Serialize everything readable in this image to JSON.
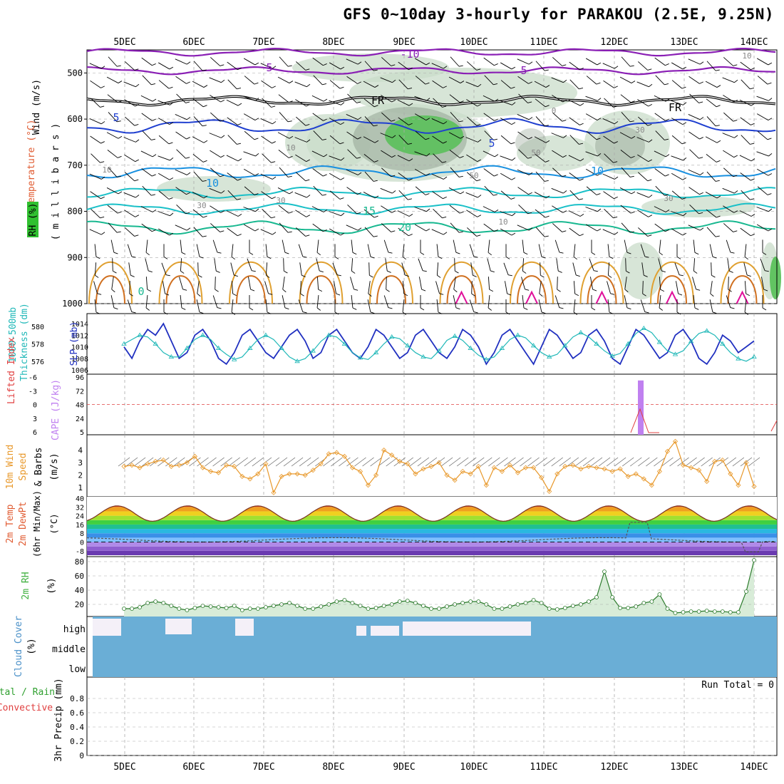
{
  "title": "GFS 0~10day 3-hourly for PARAKOU (2.5E, 9.25N)",
  "colors": {
    "grid": "#aaaaaa",
    "rh": "#c9dcc9",
    "rh_dark": "#9aaa9a",
    "rh_green": "#55c055",
    "temp_purple": "#8a1fb5",
    "temp_blue": "#1f3fd0",
    "temp_lightblue": "#1890e0",
    "temp_cyan": "#1ac0c8",
    "temp_teal": "#18b890",
    "freeze": "#000000",
    "warm_orange": "#e0a030",
    "warm_dark": "#d07020",
    "warm_magenta": "#e0109a",
    "thickness": "#20b8b8",
    "slp": "#2030c0",
    "cape": "#c080f0",
    "lifted": "#e04040",
    "wind10": "#e8982a",
    "cloud": "#6aaed6",
    "rh2m": "#40b040"
  },
  "panel_labels": {
    "wind": "Wind (m/s)",
    "temperature": "Temperature (°C)",
    "rh": "RH (%)",
    "millibars": "( m i l l i b a r s )",
    "thickness": "Thickness (dm)",
    "thickness2": "1000-500mb",
    "slp": "SLP (mb)",
    "lifted": "Lifted Index",
    "cape": "CAPE (J/kg)",
    "wind10_a": "10m Wind",
    "wind10_b": "Speed",
    "wind10_c": "& Barbs",
    "wind10_unit": "(m/s)",
    "temp2m_a": "2m Temp",
    "temp2m_b": "2m DewPt",
    "temp2m_c": "(6hr Min/Max)",
    "temp2m_unit": "(°C)",
    "rh2m": "2m RH",
    "rh2m_unit": "(%)",
    "cloud": "Cloud Cover",
    "cloud_unit": "(%)",
    "precip_a": "Total / Rain",
    "precip_b": "Convective",
    "precip_unit": "3hr Precip (mm)",
    "run_total": "Run Total = 0"
  },
  "date_labels": [
    "5DEC",
    "6DEC",
    "7DEC",
    "8DEC",
    "9DEC",
    "10DEC",
    "11DEC",
    "12DEC",
    "13DEC",
    "14DEC"
  ],
  "pressure_levels": [
    "500",
    "600",
    "700",
    "800",
    "900",
    "1000"
  ],
  "cloud_levels": [
    "high",
    "middle",
    "low"
  ],
  "contour_labels": {
    "temp": [
      "-10",
      "5",
      "5",
      "FR",
      "FR",
      "5",
      "5",
      "10",
      "10",
      "15",
      "20",
      "0"
    ],
    "rh": [
      "10",
      "10",
      "10",
      "30",
      "30",
      "30",
      "50",
      "50",
      "30",
      "10",
      "0"
    ]
  },
  "chart_data": [
    {
      "type": "heatmap",
      "name": "meteogram-upper-air",
      "ylabel": "millibars",
      "yrange": [
        450,
        1000
      ],
      "x": [
        "5DEC",
        "6DEC",
        "7DEC",
        "8DEC",
        "9DEC",
        "10DEC",
        "11DEC",
        "12DEC",
        "13DEC",
        "14DEC"
      ],
      "temperature_isotherms": [
        {
          "label": "-10",
          "pressure": 455
        },
        {
          "label": "5",
          "pressure": 495
        },
        {
          "label": "FR",
          "pressure": 560
        },
        {
          "label": "5",
          "pressure": 615
        },
        {
          "label": "10",
          "pressure": 715
        },
        {
          "label": "15",
          "pressure": 785
        },
        {
          "label": "20",
          "pressure": 830
        }
      ]
    },
    {
      "type": "line",
      "name": "thickness-slp",
      "x_hours": [
        0,
        3,
        6,
        9,
        12,
        15,
        18,
        21,
        24,
        27,
        30,
        33,
        36,
        39,
        42,
        45,
        48,
        51,
        54,
        57,
        60,
        63,
        66,
        69,
        72,
        75,
        78,
        81,
        84,
        87,
        90,
        93,
        96,
        99,
        102,
        105,
        108,
        111,
        114,
        117,
        120,
        123,
        126,
        129,
        132,
        135,
        138,
        141,
        144,
        147,
        150,
        153,
        156,
        159,
        162,
        165,
        168,
        171,
        174,
        177,
        180,
        183,
        186,
        189,
        192,
        195,
        198,
        201,
        204,
        207,
        210,
        213,
        216,
        219,
        222,
        225,
        228,
        231,
        234,
        237,
        240
      ],
      "series": [
        {
          "name": "SLP (mb)",
          "axis": "right",
          "ylim": [
            1006,
            1015
          ],
          "values": [
            1010,
            1008,
            1011,
            1013,
            1012,
            1014,
            1011,
            1008,
            1009,
            1012,
            1013,
            1011,
            1008,
            1007,
            1009,
            1012,
            1013,
            1011,
            1009,
            1008,
            1010,
            1012,
            1013,
            1011,
            1008,
            1009,
            1012,
            1013,
            1011,
            1009,
            1008,
            1010,
            1013,
            1012,
            1010,
            1008,
            1009,
            1012,
            1013,
            1011,
            1009,
            1008,
            1010,
            1013,
            1012,
            1010,
            1007,
            1009,
            1012,
            1013,
            1011,
            1009,
            1007,
            1010,
            1013,
            1012,
            1010,
            1008,
            1009,
            1012,
            1013,
            1011,
            1008,
            1007,
            1010,
            1013,
            1012,
            1010,
            1008,
            1009,
            1012,
            1013,
            1011,
            1008,
            1007,
            1009,
            1012,
            1011,
            1009,
            1010,
            1011
          ]
        },
        {
          "name": "Thickness (dm)",
          "axis": "left",
          "ylim": [
            575,
            581
          ],
          "values": [
            578,
            578.5,
            579,
            578.8,
            578,
            577,
            576.5,
            576.5,
            577.5,
            578.5,
            579,
            578.5,
            577.5,
            576.8,
            576.2,
            576.5,
            577.5,
            578.5,
            579,
            578.5,
            577.5,
            576.5,
            576,
            576.3,
            577.2,
            578.3,
            579,
            578.8,
            578,
            577,
            576.4,
            576.2,
            577,
            578,
            578.8,
            578.6,
            577.8,
            577,
            576.5,
            576.3,
            577.2,
            578.4,
            578.9,
            578.4,
            577.5,
            576.7,
            576.2,
            576.5,
            577.5,
            578.5,
            579,
            578.7,
            577.8,
            577,
            576.5,
            576.8,
            577.8,
            578.8,
            579.3,
            578.8,
            578,
            577.2,
            576.6,
            576.9,
            578,
            579.2,
            579.8,
            579.3,
            578.2,
            577.2,
            576.8,
            577.2,
            578.3,
            579.2,
            579.5,
            579,
            578,
            577,
            576.3,
            576,
            576.5
          ]
        }
      ]
    },
    {
      "type": "bar",
      "name": "cape-lifted-index",
      "cape_ylim": [
        0,
        96
      ],
      "lifted_ylim": [
        6,
        -6
      ],
      "cape_spike": {
        "x": "12DEC",
        "value": 90
      },
      "lifted_min": -2
    },
    {
      "type": "line",
      "name": "wind-10m",
      "ylabel": "(m/s)",
      "ylim": [
        0.5,
        5
      ],
      "values": [
        2.7,
        2.8,
        2.6,
        2.9,
        3.1,
        3.2,
        2.7,
        2.8,
        3.0,
        3.5,
        2.6,
        2.3,
        2.2,
        2.8,
        2.7,
        1.9,
        1.7,
        2.1,
        2.9,
        0.6,
        1.9,
        2.1,
        2.1,
        2.0,
        2.4,
        2.9,
        3.7,
        3.8,
        3.5,
        2.6,
        2.3,
        1.2,
        2.0,
        4.0,
        3.6,
        3.1,
        2.9,
        2.1,
        2.5,
        2.7,
        3.0,
        2.0,
        1.6,
        2.3,
        2.1,
        2.7,
        1.2,
        2.6,
        2.3,
        2.8,
        2.2,
        2.6,
        2.6,
        1.8,
        0.7,
        2.1,
        2.7,
        2.8,
        2.5,
        2.7,
        2.6,
        2.5,
        2.3,
        2.5,
        1.9,
        2.1,
        1.7,
        1.2,
        2.3,
        3.9,
        4.7,
        2.8,
        2.6,
        2.4,
        1.5,
        3.1,
        3.2,
        2.1,
        1.2,
        3.0,
        1.1
      ]
    },
    {
      "type": "area",
      "name": "temp-2m",
      "ylim": [
        -12,
        40
      ],
      "ticks": [
        "40",
        "32",
        "24",
        "16",
        "8",
        "0",
        "-8"
      ],
      "max_temps": [
        33,
        33,
        33,
        33,
        33,
        33,
        33,
        33,
        33,
        33
      ],
      "min_temps": [
        20,
        21,
        20,
        20,
        20,
        21,
        21,
        20,
        21,
        20
      ]
    },
    {
      "type": "line",
      "name": "rh-2m",
      "ylim": [
        5,
        85
      ],
      "ticks": [
        "80",
        "60",
        "40",
        "20"
      ],
      "values": [
        14,
        14,
        16,
        22,
        24,
        22,
        18,
        14,
        12,
        15,
        18,
        17,
        16,
        15,
        18,
        12,
        14,
        14,
        16,
        18,
        20,
        22,
        18,
        14,
        14,
        17,
        20,
        24,
        26,
        22,
        18,
        14,
        15,
        18,
        20,
        24,
        25,
        22,
        18,
        14,
        14,
        17,
        20,
        22,
        24,
        24,
        20,
        14,
        14,
        17,
        20,
        22,
        26,
        22,
        14,
        13,
        15,
        18,
        20,
        24,
        30,
        66,
        30,
        15,
        15,
        17,
        22,
        24,
        34,
        14,
        8,
        9,
        10,
        10,
        11,
        10,
        10,
        9,
        9,
        38,
        82
      ]
    },
    {
      "type": "bar",
      "name": "cloud-cover",
      "levels": [
        "high",
        "middle",
        "low"
      ],
      "value_percent": 100
    },
    {
      "type": "bar",
      "name": "precip-3hr",
      "ylabel": "3hr Precip (mm)",
      "ylim": [
        0,
        1
      ],
      "ticks": [
        "0.8",
        "0.6",
        "0.4",
        "0.2",
        "0"
      ],
      "values": []
    }
  ]
}
